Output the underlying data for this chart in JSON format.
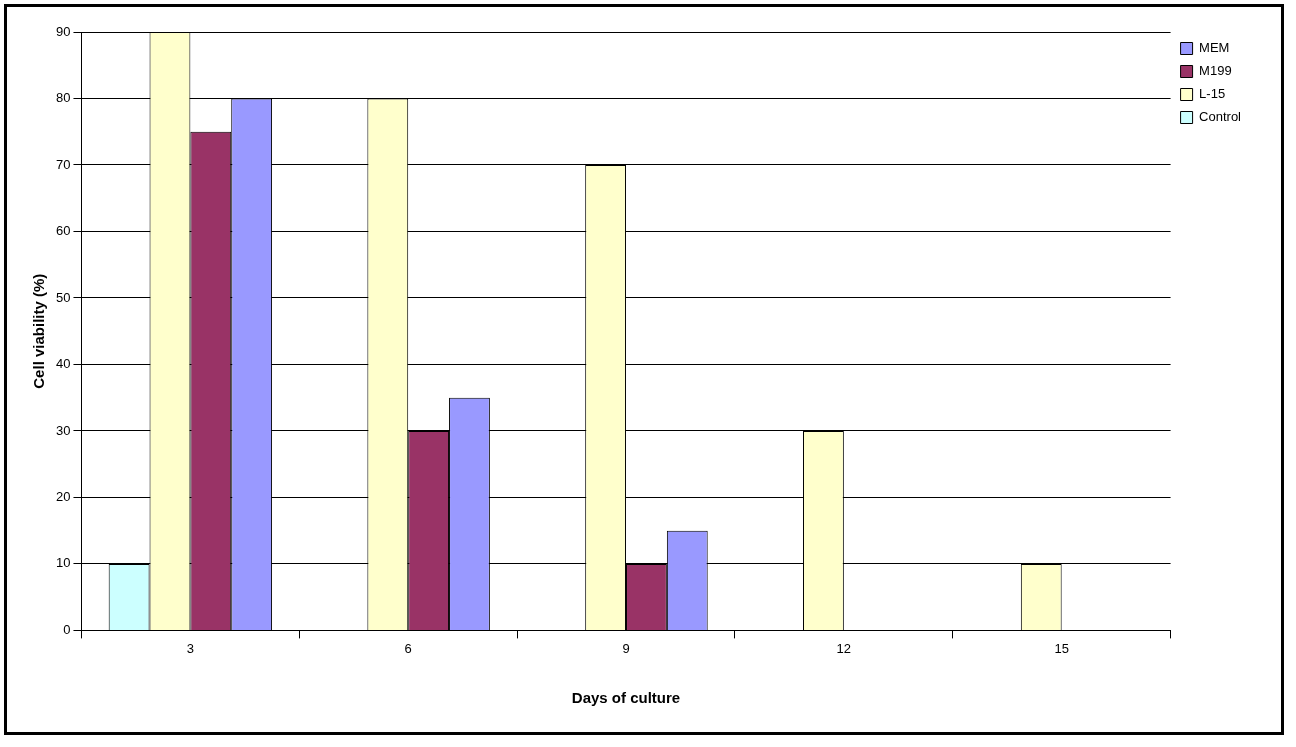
{
  "chart_data": {
    "type": "bar",
    "xlabel": "Days of culture",
    "ylabel": "Cell viability (%)",
    "categories": [
      "3",
      "6",
      "9",
      "12",
      "15"
    ],
    "series": [
      {
        "name": "Control",
        "color": "#ccffff",
        "values": [
          10,
          0,
          0,
          0,
          0
        ]
      },
      {
        "name": "L-15",
        "color": "#ffffcc",
        "values": [
          90,
          80,
          70,
          30,
          10
        ]
      },
      {
        "name": "M199",
        "color": "#993366",
        "values": [
          75,
          30,
          10,
          0,
          0
        ]
      },
      {
        "name": "MEM",
        "color": "#9999ff",
        "values": [
          80,
          35,
          15,
          0,
          0
        ]
      }
    ],
    "ylim": [
      0,
      90
    ],
    "yticks": [
      0,
      10,
      20,
      30,
      40,
      50,
      60,
      70,
      80,
      90
    ],
    "grid": "y",
    "legend": "top right"
  }
}
